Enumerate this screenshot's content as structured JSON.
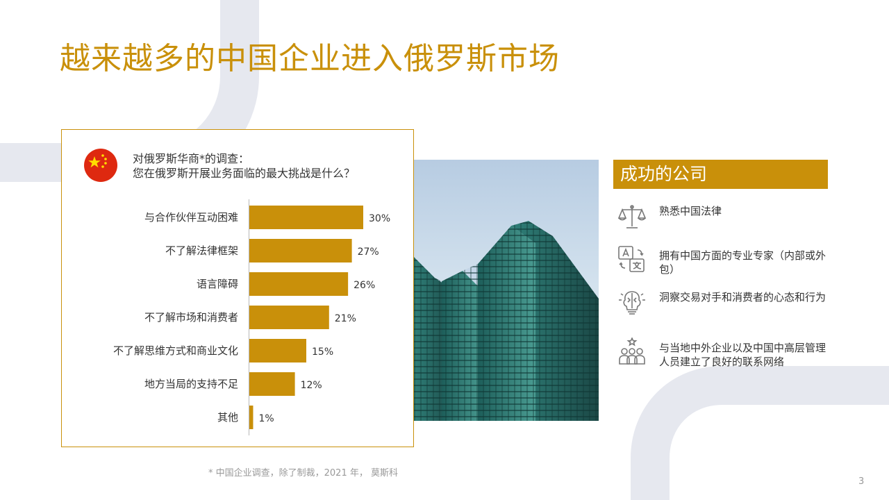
{
  "slide": {
    "title": "越来越多的中国企业进入俄罗斯市场",
    "footnote": "* 中国企业调查，除了制裁，2021 年， 莫斯科",
    "page_number": "3"
  },
  "survey": {
    "question_line1": "对俄罗斯华商*的调查：",
    "question_line2": "您在俄罗斯开展业务面临的最大挑战是什么？"
  },
  "chart_data": {
    "type": "bar",
    "orientation": "horizontal",
    "categories": [
      "与合作伙伴互动困难",
      "不了解法律框架",
      "语言障碍",
      "不了解市场和消费者",
      "不了解思维方式和商业文化",
      "地方当局的支持不足",
      "其他"
    ],
    "values": [
      30,
      27,
      26,
      21,
      15,
      12,
      1
    ],
    "data_labels": [
      "30%",
      "27%",
      "26%",
      "21%",
      "15%",
      "12%",
      "1%"
    ],
    "xlim": [
      0,
      30
    ],
    "bar_color": "#C9900A",
    "grid": false
  },
  "panel": {
    "header": "成功的公司",
    "items": [
      {
        "icon": "scales-icon",
        "text": "熟悉中国法律"
      },
      {
        "icon": "translation-icon",
        "text": "拥有中国方面的专业专家（内部或外包）"
      },
      {
        "icon": "brain-icon",
        "text": "洞察交易对手和消费者的心态和行为"
      },
      {
        "icon": "people-network-icon",
        "text": "与当地中外企业以及中国中高层管理人员建立了良好的联系网络"
      }
    ]
  },
  "colors": {
    "accent": "#C9900A",
    "decor_arc": "#E6E8EF",
    "flag_red": "#DE2910",
    "flag_star": "#FFDE00"
  }
}
